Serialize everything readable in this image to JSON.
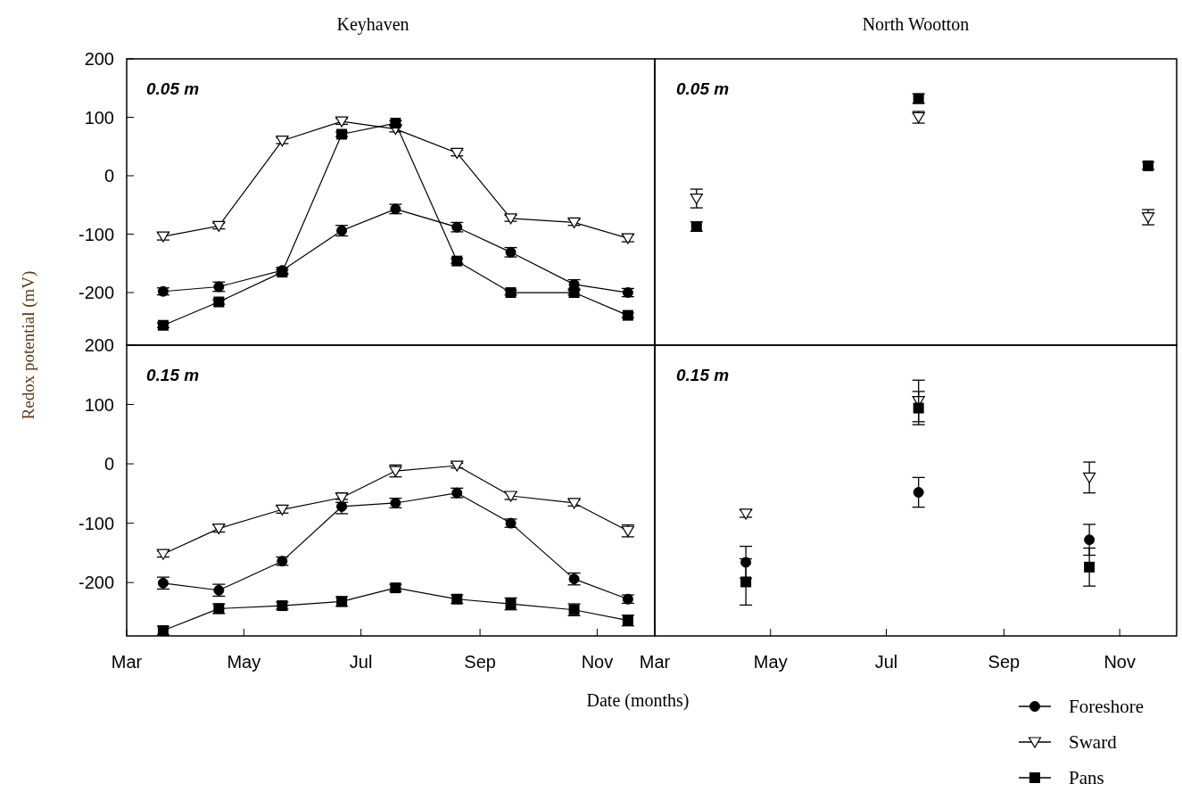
{
  "chart_data": [
    {
      "type": "line",
      "title": "Keyhaven",
      "ylabel": "Redox potential (mV)",
      "annotations": [
        "0.05 m"
      ],
      "tick_labels": "y",
      "legend": false,
      "x": [
        "--03-20",
        "--04-18",
        "--05-21",
        "--06-21",
        "--07-19",
        "--08-20",
        "--09-17",
        "--10-20",
        "--11-17"
      ],
      "xlim": [
        "--03-01",
        "--12-01"
      ],
      "ylim": [
        -290,
        200
      ],
      "yticks": [
        200,
        100,
        0,
        -100,
        -200
      ],
      "series": [
        {
          "color": "#000000",
          "marker": "circle",
          "values": [
            -198,
            -190,
            -162,
            -94,
            -57,
            -88,
            -131,
            -186,
            -200
          ],
          "errors": [
            6,
            8,
            5,
            9,
            8,
            8,
            8,
            8,
            7
          ]
        },
        {
          "color": "#000000",
          "marker": "triangle",
          "values": [
            -104,
            -86,
            60,
            93,
            80,
            39,
            -73,
            -80,
            -107
          ],
          "errors": [
            6,
            5,
            5,
            5,
            5,
            5,
            5,
            5,
            6
          ]
        },
        {
          "color": "#000000",
          "marker": "square",
          "values": [
            -256,
            -216,
            -165,
            71,
            90,
            -146,
            -200,
            -200,
            -239
          ],
          "errors": [
            4,
            4,
            4,
            4,
            4,
            4,
            4,
            4,
            4
          ]
        }
      ]
    },
    {
      "type": "scatter",
      "title": "North Wootton",
      "annotations": [
        "0.05 m"
      ],
      "tick_labels": false,
      "legend": false,
      "xlim": [
        "--03-01",
        "--12-01"
      ],
      "ylim": [
        -290,
        200
      ],
      "x": [
        "--03-23",
        "--07-18",
        "--11-16"
      ],
      "series": [
        {
          "color": "#000000",
          "marker": "triangle",
          "values": [
            -39,
            100,
            -71
          ],
          "errors": [
            16,
            10,
            13
          ]
        },
        {
          "color": "#000000",
          "marker": "square",
          "values": [
            -87,
            132,
            17
          ],
          "errors": [
            8,
            8,
            6
          ]
        }
      ]
    },
    {
      "type": "line",
      "xlabel": "Date (months)",
      "annotations": [
        "0.15 m"
      ],
      "legend": false,
      "x": [
        "--03-20",
        "--04-18",
        "--05-21",
        "--06-21",
        "--07-19",
        "--08-20",
        "--09-17",
        "--10-20",
        "--11-17"
      ],
      "xlim": [
        "--03-01",
        "--12-01"
      ],
      "xticks": [
        {
          "value": "--03-01",
          "label": "Mar"
        },
        {
          "value": "--05-01",
          "label": "May"
        },
        {
          "value": "--07-01",
          "label": "Jul"
        },
        {
          "value": "--09-01",
          "label": "Sep"
        },
        {
          "value": "--11-01",
          "label": "Nov"
        }
      ],
      "ylim": [
        -290,
        200
      ],
      "yticks": [
        200,
        100,
        0,
        -100,
        -200
      ],
      "series": [
        {
          "color": "#000000",
          "marker": "circle",
          "values": [
            -201,
            -213,
            -164,
            -72,
            -66,
            -49,
            -100,
            -194,
            -228
          ],
          "errors": [
            10,
            10,
            7,
            12,
            8,
            8,
            7,
            10,
            7
          ]
        },
        {
          "color": "#000000",
          "marker": "triangle",
          "values": [
            -152,
            -109,
            -77,
            -57,
            -12,
            -3,
            -54,
            -66,
            -113
          ],
          "errors": [
            5,
            6,
            6,
            8,
            10,
            4,
            6,
            5,
            10
          ]
        },
        {
          "color": "#000000",
          "marker": "square",
          "values": [
            -281,
            -244,
            -239,
            -232,
            -209,
            -228,
            -236,
            -246,
            -264
          ],
          "errors": [
            7,
            8,
            6,
            8,
            6,
            7,
            10,
            10,
            9
          ]
        }
      ]
    },
    {
      "type": "scatter",
      "annotations": [
        "0.15 m"
      ],
      "tick_labels": "x",
      "legend": "bottom right",
      "xlim": [
        "--03-01",
        "--12-01"
      ],
      "xticks": [
        {
          "value": "--03-01",
          "label": "Mar"
        },
        {
          "value": "--05-01",
          "label": "May"
        },
        {
          "value": "--07-01",
          "label": "Jul"
        },
        {
          "value": "--09-01",
          "label": "Sep"
        },
        {
          "value": "--11-01",
          "label": "Nov"
        }
      ],
      "ylim": [
        -290,
        200
      ],
      "x": [
        "--04-18",
        "--07-18",
        "--10-16"
      ],
      "series": [
        {
          "name": "Foreshore",
          "color": "#000000",
          "marker": "circle",
          "values": [
            -166,
            -48,
            -128
          ],
          "errors": [
            27,
            25,
            26
          ]
        },
        {
          "name": "Sward",
          "color": "#000000",
          "marker": "triangle",
          "values": [
            -84,
            106,
            -23
          ],
          "errors": [
            6,
            35,
            26
          ]
        },
        {
          "name": "Pans",
          "color": "#000000",
          "marker": "square",
          "values": [
            -199,
            94,
            -174
          ],
          "errors": [
            39,
            28,
            32
          ]
        }
      ]
    }
  ]
}
